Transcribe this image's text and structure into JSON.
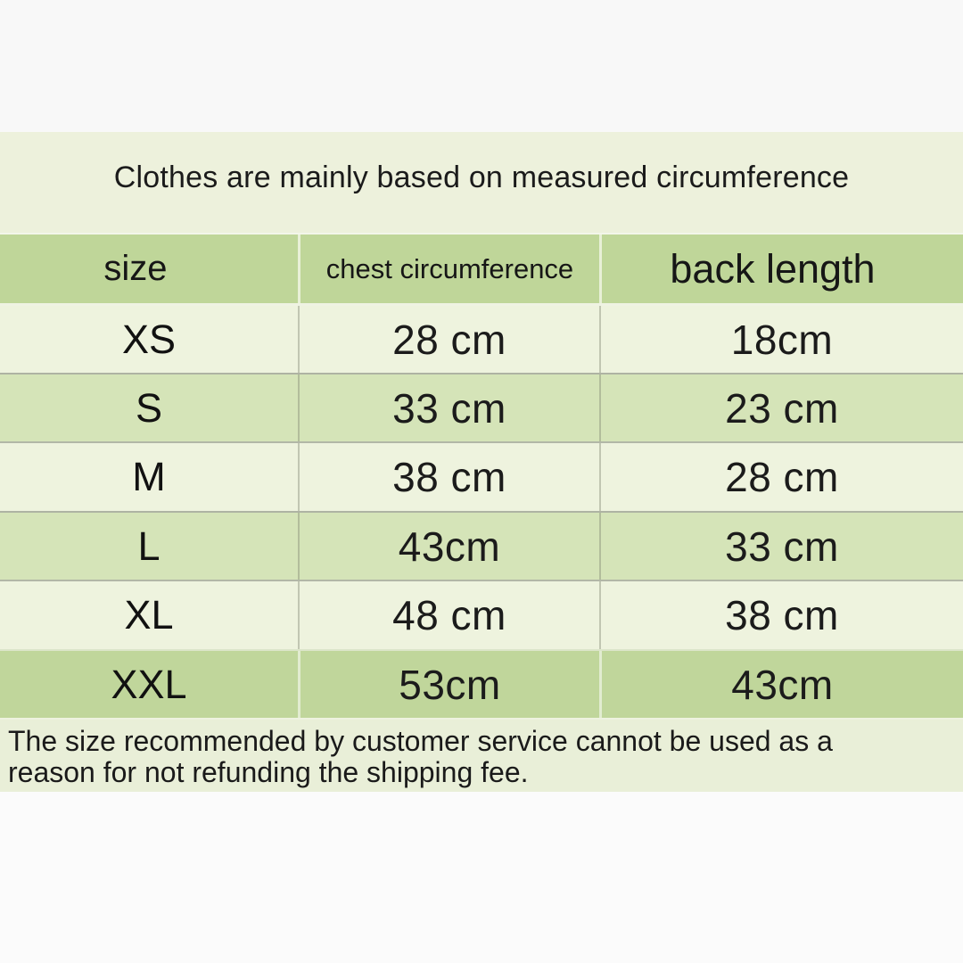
{
  "title": "Clothes are mainly based on measured circumference",
  "table": {
    "headers": {
      "size": "size",
      "chest": "chest circumference",
      "back": "back length"
    },
    "rows": [
      {
        "size": "XS",
        "chest": "28 cm",
        "back": "18cm"
      },
      {
        "size": "S",
        "chest": "33 cm",
        "back": "23 cm"
      },
      {
        "size": "M",
        "chest": "38 cm",
        "back": "28 cm"
      },
      {
        "size": "L",
        "chest": "43cm",
        "back": "33 cm"
      },
      {
        "size": "XL",
        "chest": "48 cm",
        "back": "38 cm"
      },
      {
        "size": "XXL",
        "chest": "53cm",
        "back": "43cm"
      }
    ]
  },
  "footer": {
    "lines": [
      "The size recommended by customer service cannot be used as a",
      "reason for not refunding the shipping fee."
    ]
  },
  "colors": {
    "header_green": "#bfd699",
    "row_pale": "#eef3de",
    "row_green": "#d5e4b8",
    "row_dark_green": "#c0d69b",
    "title_band": "#edf1dc",
    "footer_band": "#e9efd8",
    "text": "#161616"
  }
}
